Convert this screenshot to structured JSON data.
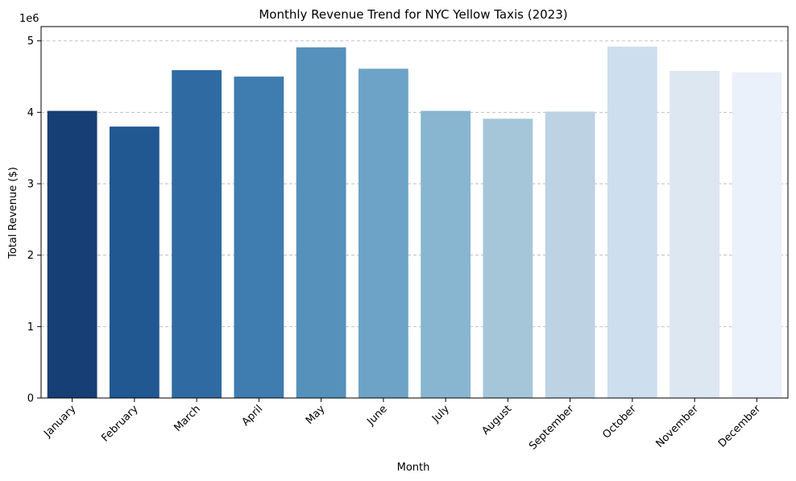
{
  "chart_data": {
    "type": "bar",
    "title": "Monthly Revenue Trend for NYC Yellow Taxis (2023)",
    "xlabel": "Month",
    "ylabel": "Total Revenue ($)",
    "y_offset_label": "1e6",
    "categories": [
      "January",
      "February",
      "March",
      "April",
      "May",
      "June",
      "July",
      "August",
      "September",
      "October",
      "November",
      "December"
    ],
    "values": [
      4020000,
      3800000,
      4590000,
      4500000,
      4910000,
      4610000,
      4020000,
      3910000,
      4010000,
      4920000,
      4580000,
      4560000
    ],
    "colors": [
      "#163f75",
      "#215891",
      "#2f6ba2",
      "#3f7cb0",
      "#5591bb",
      "#6ca3c6",
      "#88b5d0",
      "#a5c6d9",
      "#bdd2e3",
      "#cddeee",
      "#dde7f2",
      "#eaf1fa"
    ],
    "ylim": [
      0,
      5200000
    ],
    "yticks": [
      0,
      1000000,
      2000000,
      3000000,
      4000000,
      5000000
    ],
    "ytick_labels": [
      "0",
      "1",
      "2",
      "3",
      "4",
      "5"
    ],
    "grid": "y-dashed",
    "legend": "none"
  }
}
